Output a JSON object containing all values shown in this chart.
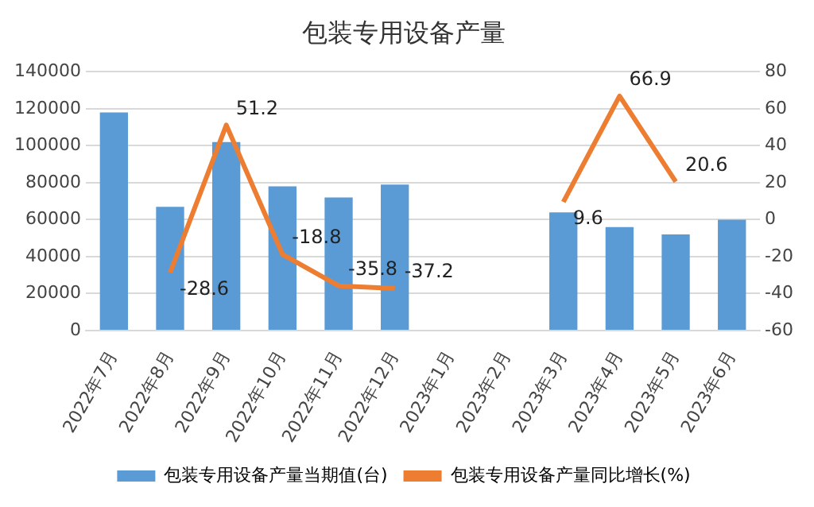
{
  "chart_data": {
    "type": "bar",
    "title": "包装专用设备产量",
    "categories": [
      "2022年7月",
      "2022年8月",
      "2022年9月",
      "2022年10月",
      "2022年11月",
      "2022年12月",
      "2023年1月",
      "2023年2月",
      "2023年3月",
      "2023年4月",
      "2023年5月",
      "2023年6月"
    ],
    "series": [
      {
        "name": "包装专用设备产量当期值(台)",
        "color": "#5b9bd5",
        "values": [
          118000,
          67000,
          102000,
          78000,
          72000,
          79000,
          null,
          null,
          64000,
          56000,
          52000,
          60000
        ]
      },
      {
        "name": "包装专用设备产量同比增长(%)",
        "type": "line",
        "axis": "y2",
        "color": "#ed7d31",
        "values": [
          null,
          -28.6,
          51.2,
          -18.8,
          -35.8,
          -37.2,
          null,
          null,
          9.6,
          66.9,
          20.6,
          null
        ],
        "value_labels": [
          null,
          "-28.6",
          "51.2",
          "-18.8",
          "-35.8",
          "-37.2",
          null,
          null,
          "9.6",
          "66.9",
          "20.6",
          null
        ]
      }
    ],
    "ylim": [
      0,
      140000
    ],
    "yticks": [
      0,
      20000,
      40000,
      60000,
      80000,
      100000,
      120000,
      140000
    ],
    "y2lim": [
      -60,
      80
    ],
    "y2ticks": [
      -60,
      -40,
      -20,
      0,
      20,
      40,
      60,
      80
    ],
    "grid": "y",
    "legend": "bottom",
    "marker": "none",
    "line_style": "solid"
  }
}
